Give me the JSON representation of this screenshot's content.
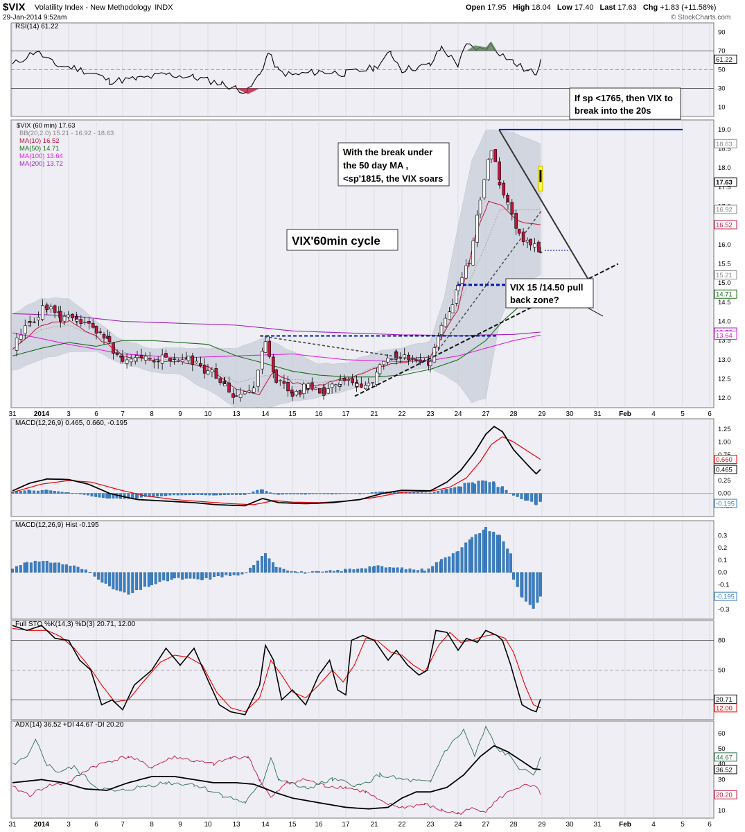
{
  "header": {
    "symbol": "$VIX",
    "name": "Volatility Index - New Methodology",
    "exchange": "INDX",
    "datetime": "29-Jan-2014 9:52am",
    "quote": {
      "open_label": "Open",
      "open": "17.95",
      "high_label": "High",
      "high": "18.04",
      "low_label": "Low",
      "low": "17.40",
      "last_label": "Last",
      "last": "17.63",
      "chg_label": "Chg",
      "chg": "+1.83 (+11.58%)"
    },
    "watermark": "© StockCharts.com"
  },
  "colors": {
    "bg": "#ffffff",
    "panel_bg": "#eeeef4",
    "border": "#777777",
    "up": "#ffffff",
    "down": "#c0143c",
    "candle_line": "#000000",
    "bb_fill": "#bcc4d0",
    "ma10": "#c0143c",
    "ma50": "#1a6b1a",
    "ma100": "#e020e0",
    "ma200": "#a020c0",
    "hist": "#3a7fc4",
    "annot_blue": "#0018b0",
    "signal_red": "#ee0000",
    "adx_green": "#2e6e4e",
    "adx_red": "#c0143c"
  },
  "x_axis": {
    "ticks": [
      "31",
      "2014",
      "3",
      "6",
      "7",
      "8",
      "9",
      "10",
      "13",
      "14",
      "15",
      "16",
      "17",
      "21",
      "22",
      "23",
      "24",
      "27",
      "28",
      "29",
      "30",
      "31",
      "Feb",
      "4",
      "5",
      "6"
    ],
    "last_data_index": 19
  },
  "panels": {
    "rsi": {
      "label": "RSI(14) 61.22",
      "ylim": [
        0,
        100
      ],
      "ticks": [
        10,
        30,
        50,
        70,
        90
      ],
      "last_tag": "61.22",
      "levels": [
        30,
        50,
        70
      ]
    },
    "price": {
      "legend": [
        {
          "text": "$VIX (60 min) 17.63",
          "color": "#000000"
        },
        {
          "text": "BB(20,2.0) 15.21 - 16.92 - 18.63",
          "color": "#888888"
        },
        {
          "text": "MA(10) 16.52",
          "color": "#c0143c"
        },
        {
          "text": "MA(50) 14.71",
          "color": "#1a6b1a"
        },
        {
          "text": "MA(100) 13.64",
          "color": "#e020e0"
        },
        {
          "text": "MA(200) 13.72",
          "color": "#a020c0"
        }
      ],
      "ylim": [
        11.75,
        19.25
      ],
      "ticks": [
        12.0,
        12.5,
        13.0,
        13.5,
        14.0,
        14.5,
        15.0,
        15.5,
        16.0,
        16.5,
        17.0,
        17.5,
        18.0,
        18.5,
        19.0
      ],
      "tick_labels": [
        "12.0",
        "12.5",
        "13.0",
        "13.5",
        "14.0",
        "14.5",
        "15.0",
        "15.5",
        "16.0",
        "16.5",
        "17.0",
        "17.5",
        "18.0",
        "18.5",
        "19.0"
      ],
      "tags": [
        {
          "text": "18.63",
          "value": 18.63,
          "color": "#888888"
        },
        {
          "text": "17.63",
          "value": 17.63,
          "color": "#000000",
          "bold": true
        },
        {
          "text": "16.92",
          "value": 16.92,
          "color": "#888888"
        },
        {
          "text": "16.52",
          "value": 16.52,
          "color": "#c0143c"
        },
        {
          "text": "15.21",
          "value": 15.21,
          "color": "#888888"
        },
        {
          "text": "14.71",
          "value": 14.71,
          "color": "#1a6b1a"
        },
        {
          "text": "13.72",
          "value": 13.72,
          "color": "#a020c0"
        },
        {
          "text": "13.64",
          "value": 13.64,
          "color": "#e020e0"
        }
      ],
      "annotations": {
        "box1": [
          "If sp <1765, then VIX to",
          "break into the 20s"
        ],
        "box2": [
          "With the break under",
          "the 50 day MA ,",
          "<sp'1815, the VIX soars"
        ],
        "box3": [
          "VIX'60min cycle"
        ],
        "box4": [
          "VIX 15 /14.50 pull",
          "back zone?"
        ]
      }
    },
    "macd": {
      "label": "MACD(12,26,9) 0.465, 0.660, -0.195",
      "ylim": [
        -0.45,
        1.45
      ],
      "ticks": [
        -0.25,
        0.0,
        0.25,
        0.5,
        0.75,
        1.0,
        1.25
      ],
      "tick_labels": [
        "-0.25",
        "0.00",
        "0.25",
        "0.50",
        "0.75",
        "1.00",
        "1.25"
      ],
      "tags": [
        {
          "text": "0.660",
          "value": 0.66,
          "color": "#ee0000"
        },
        {
          "text": "0.465",
          "value": 0.465,
          "color": "#000000"
        },
        {
          "text": "-0.195",
          "value": -0.195,
          "color": "#3a7fc4"
        }
      ]
    },
    "hist": {
      "label": "MACD(12,26,9) Hist -0.195",
      "ylim": [
        -0.38,
        0.42
      ],
      "ticks": [
        -0.3,
        -0.2,
        -0.1,
        0.0,
        0.1,
        0.2,
        0.3
      ],
      "tick_labels": [
        "-0.3",
        "-0.2",
        "-0.1",
        "0.0",
        "0.1",
        "0.2",
        "0.3"
      ],
      "tags": [
        {
          "text": "-0.195",
          "value": -0.195,
          "color": "#3a7fc4"
        }
      ]
    },
    "sto": {
      "label": "Full STO %K(14,3) %D(3) 20.71, 12.00",
      "ylim": [
        0,
        100
      ],
      "ticks": [
        20,
        50,
        80
      ],
      "levels": [
        20,
        50,
        80
      ],
      "tags": [
        {
          "text": "20.71",
          "value": 20.71,
          "color": "#000000"
        },
        {
          "text": "12.00",
          "value": 12.0,
          "color": "#ee0000"
        }
      ]
    },
    "adx": {
      "label": "ADX(14) 36.52 +DI 44.67 -DI 20.20",
      "ylim": [
        5,
        68
      ],
      "ticks": [
        10,
        20,
        30,
        40,
        50,
        60
      ],
      "tags": [
        {
          "text": "44.67",
          "value": 44.67,
          "color": "#2e6e4e"
        },
        {
          "text": "36.52",
          "value": 36.52,
          "color": "#000000"
        },
        {
          "text": "20.20",
          "value": 20.2,
          "color": "#c0143c"
        }
      ]
    }
  },
  "chart_data": {
    "type": "line",
    "interval": "60 min",
    "x_categories": [
      "31",
      "2014",
      "3",
      "6",
      "7",
      "8",
      "9",
      "10",
      "13",
      "14",
      "15",
      "16",
      "17",
      "21",
      "22",
      "23",
      "24",
      "27",
      "28",
      "29"
    ],
    "candles_close_per_day": [
      13.4,
      14.1,
      13.8,
      13.6,
      13.0,
      13.0,
      12.95,
      12.6,
      11.9,
      13.4,
      12.1,
      12.2,
      12.5,
      12.9,
      13.0,
      12.9,
      15.0,
      18.0,
      16.2,
      17.63
    ],
    "series": [
      {
        "name": "MA(10)",
        "last": 16.52
      },
      {
        "name": "MA(50)",
        "last": 14.71
      },
      {
        "name": "MA(100)",
        "last": 13.64
      },
      {
        "name": "MA(200)",
        "last": 13.72
      }
    ],
    "bollinger": {
      "lower": 15.21,
      "middle": 16.92,
      "upper": 18.63
    },
    "rsi_last": 61.22,
    "macd": {
      "macd": 0.465,
      "signal": 0.66,
      "hist": -0.195
    },
    "stochastic": {
      "k": 20.71,
      "d": 12.0
    },
    "adx": {
      "adx": 36.52,
      "plus_di": 44.67,
      "minus_di": 20.2
    }
  }
}
